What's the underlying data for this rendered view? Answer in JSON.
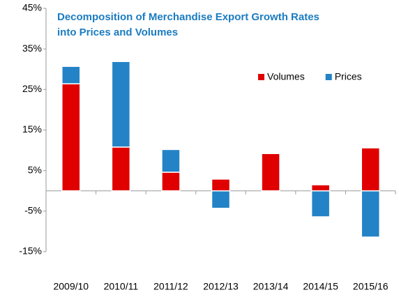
{
  "chart_data": {
    "type": "stacked-bar",
    "title": [
      "Decomposition of Merchandise Export Growth Rates",
      "into Prices and Volumes"
    ],
    "categories": [
      "2009/10",
      "2010/11",
      "2011/12",
      "2012/13",
      "2013/14",
      "2014/15",
      "2015/16"
    ],
    "series": [
      {
        "name": "Volumes",
        "color": "#e00000",
        "values": [
          26.4,
          10.8,
          4.6,
          2.9,
          9.2,
          1.5,
          10.6
        ]
      },
      {
        "name": "Prices",
        "color": "#2383c6",
        "values": [
          4.3,
          21.1,
          5.6,
          -4.3,
          0,
          -6.4,
          -11.4
        ]
      }
    ],
    "ylim": [
      -15,
      45
    ],
    "yticks": [
      {
        "value": 45,
        "label": "45%"
      },
      {
        "value": 35,
        "label": "35%"
      },
      {
        "value": 25,
        "label": "25%"
      },
      {
        "value": 15,
        "label": "15%"
      },
      {
        "value": 5,
        "label": "5%"
      },
      {
        "value": -5,
        "label": "-5%"
      },
      {
        "value": -15,
        "label": "-15%"
      }
    ],
    "grid": false,
    "legend": "upper-right"
  }
}
